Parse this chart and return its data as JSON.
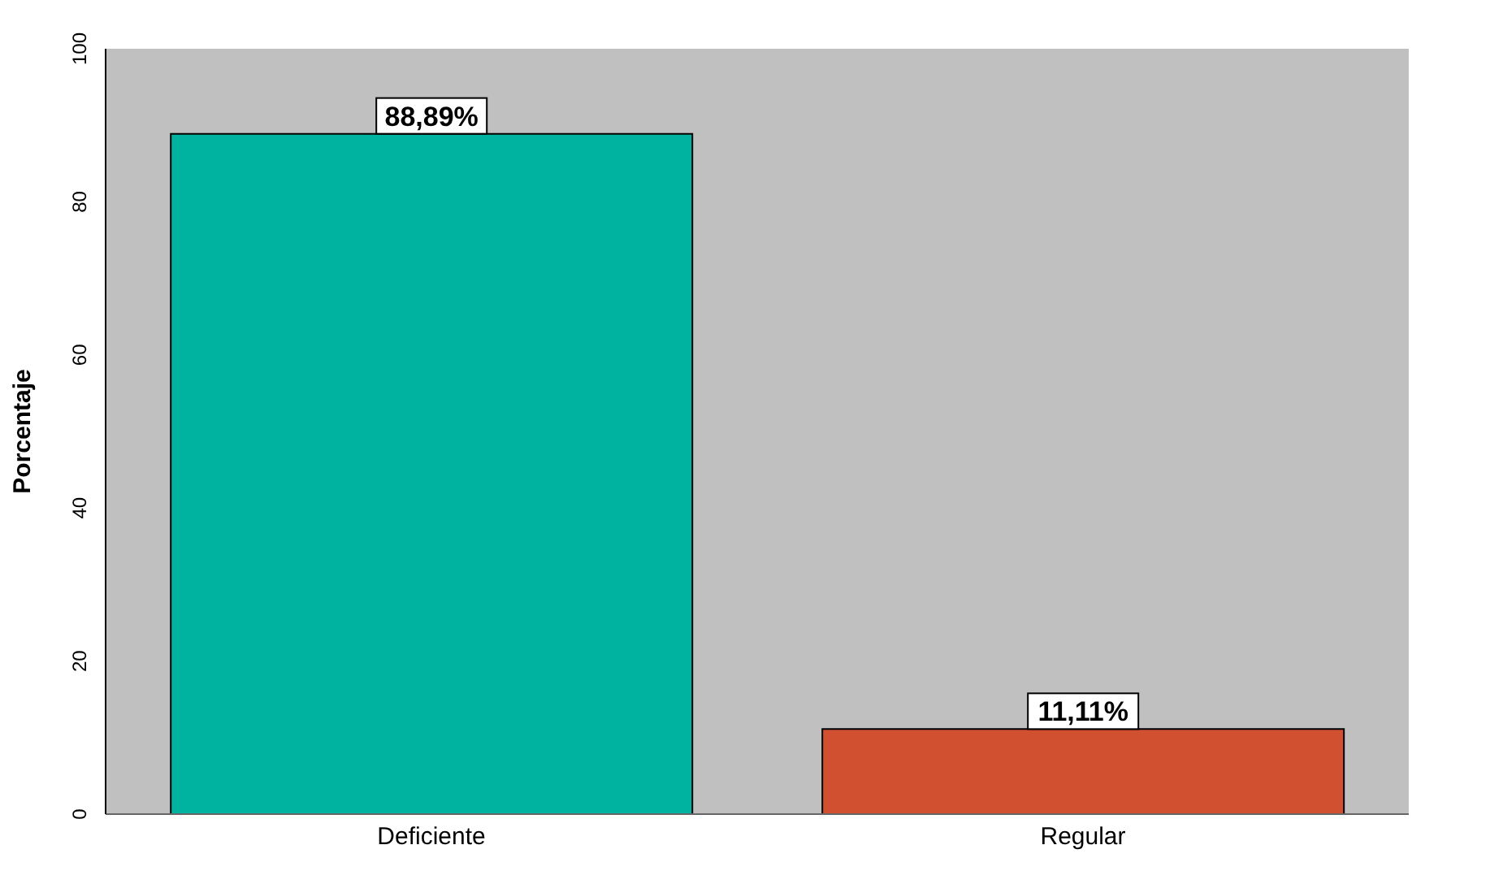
{
  "chart_data": {
    "type": "bar",
    "ylabel": "Porcentaje",
    "categories": [
      "Deficiente",
      "Regular"
    ],
    "values": [
      88.89,
      11.11
    ],
    "colors": [
      "#00b3a0",
      "#d05030"
    ],
    "value_labels": [
      "88,89%",
      "11,11%"
    ],
    "ylim": [
      0,
      100
    ],
    "yticks": [
      0,
      20,
      40,
      60,
      80,
      100
    ],
    "grid": false
  }
}
